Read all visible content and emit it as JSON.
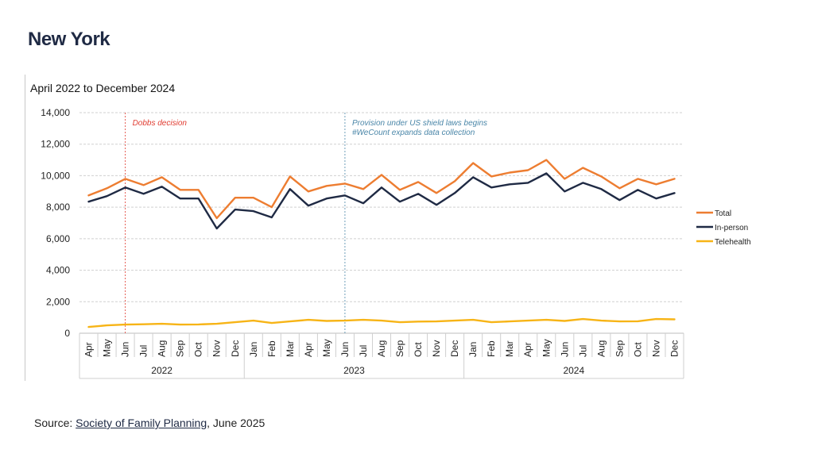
{
  "page": {
    "title": "New York"
  },
  "source": {
    "prefix": "Source: ",
    "link_text": "Society of Family Planning",
    "suffix": ", June 2025"
  },
  "colors": {
    "total": "#ED7D31",
    "in_person": "#1F2A44",
    "telehealth": "#F7B416",
    "dobbs": "#E03C31",
    "shield": "#4A86A8",
    "grid": "#D0D0D0"
  },
  "chart_data": {
    "type": "line",
    "title": "April 2022 to December 2024",
    "ylim": [
      0,
      14000
    ],
    "yticks": [
      "0",
      "2,000",
      "4,000",
      "6,000",
      "8,000",
      "10,000",
      "12,000",
      "14,000"
    ],
    "ytick_values": [
      0,
      2000,
      4000,
      6000,
      8000,
      10000,
      12000,
      14000
    ],
    "grid": true,
    "legend_position": "right",
    "categories": [
      "Apr",
      "May",
      "Jun",
      "Jul",
      "Aug",
      "Sep",
      "Oct",
      "Nov",
      "Dec",
      "Jan",
      "Feb",
      "Mar",
      "Apr",
      "May",
      "Jun",
      "Jul",
      "Aug",
      "Sep",
      "Oct",
      "Nov",
      "Dec",
      "Jan",
      "Feb",
      "Mar",
      "Apr",
      "May",
      "Jun",
      "Jul",
      "Aug",
      "Sep",
      "Oct",
      "Nov",
      "Dec"
    ],
    "year_groups": [
      {
        "label": "2022",
        "start": 0,
        "end": 8
      },
      {
        "label": "2023",
        "start": 9,
        "end": 20
      },
      {
        "label": "2024",
        "start": 21,
        "end": 32
      }
    ],
    "series": [
      {
        "name": "Total",
        "color": "#ED7D31",
        "values": [
          8750,
          9200,
          9800,
          9400,
          9900,
          9100,
          9100,
          7300,
          8600,
          8600,
          8000,
          9950,
          9000,
          9350,
          9500,
          9150,
          10050,
          9100,
          9600,
          8900,
          9650,
          10800,
          9950,
          10200,
          10350,
          11000,
          9800,
          10500,
          9950,
          9200,
          9800,
          9450,
          9800
        ]
      },
      {
        "name": "In-person",
        "color": "#1F2A44",
        "values": [
          8350,
          8700,
          9250,
          8850,
          9300,
          8550,
          8550,
          6650,
          7850,
          7750,
          7350,
          9150,
          8100,
          8550,
          8750,
          8250,
          9250,
          8350,
          8850,
          8150,
          8900,
          9900,
          9250,
          9450,
          9550,
          10150,
          9000,
          9550,
          9150,
          8450,
          9100,
          8550,
          8900
        ]
      },
      {
        "name": "Telehealth",
        "color": "#F7B416",
        "values": [
          400,
          500,
          550,
          570,
          600,
          550,
          560,
          600,
          700,
          800,
          650,
          750,
          850,
          780,
          800,
          850,
          800,
          700,
          740,
          750,
          800,
          850,
          700,
          750,
          800,
          850,
          780,
          900,
          800,
          750,
          760,
          900,
          880
        ]
      }
    ],
    "annotations": [
      {
        "index": 2,
        "lines": [
          "Dobbs decision"
        ],
        "color": "#E03C31"
      },
      {
        "index": 14,
        "lines": [
          "Provision under US shield laws begins",
          "#WeCount expands data collection"
        ],
        "color": "#4A86A8"
      }
    ]
  }
}
